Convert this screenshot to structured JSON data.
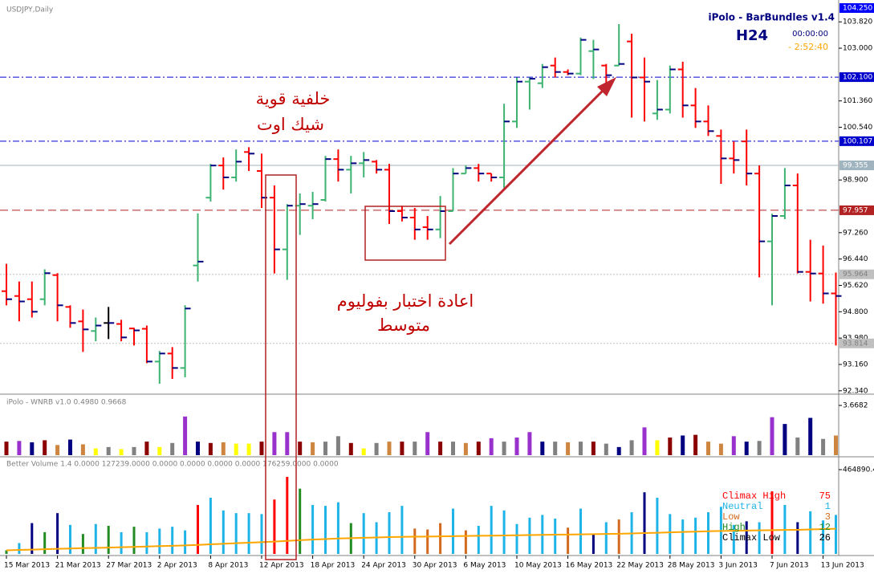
{
  "chart_data": [
    {
      "type": "ohlc",
      "title": "USDJPY,Daily",
      "info": {
        "indicator": "iPolo - BarBundles v1.4",
        "timeframe": "H24",
        "timer": "00:00:00",
        "countdown": "- 2:52:40"
      },
      "annotations": [
        "خلفية قوية",
        "شيك اوت",
        "اعادة اختبار بفوليوم",
        "متوسط"
      ],
      "categories": [
        "15 Mar 2013",
        null,
        null,
        null,
        "21 Mar 2013",
        null,
        null,
        null,
        "27 Mar 2013",
        null,
        null,
        null,
        "2 Apr 2013",
        null,
        null,
        null,
        "8 Apr 2013",
        null,
        null,
        null,
        "12 Apr 2013",
        null,
        null,
        null,
        "18 Apr 2013",
        null,
        null,
        null,
        "24 Apr 2013",
        null,
        null,
        null,
        "30 Apr 2013",
        null,
        null,
        null,
        "6 May 2013",
        null,
        null,
        null,
        "10 May 2013",
        null,
        null,
        null,
        "16 May 2013",
        null,
        null,
        null,
        "22 May 2013",
        null,
        null,
        null,
        "28 May 2013",
        null,
        null,
        null,
        "3 Jun 2013",
        null,
        null,
        null,
        "7 Jun 2013",
        null,
        null,
        null,
        "13 Jun 2013",
        null
      ],
      "open": [
        95.44,
        95.29,
        95.19,
        95.19,
        95.94,
        94.95,
        94.5,
        94.2,
        94.45,
        94.42,
        94.28,
        94.27,
        93.25,
        93.5,
        93.05,
        96.24,
        98.35,
        99.35,
        98.98,
        99.77,
        99.18,
        98.35,
        96.74,
        98.1,
        98.1,
        98.28,
        99.55,
        99.22,
        99.42,
        99.47,
        99.22,
        97.93,
        97.73,
        97.43,
        97.36,
        97.93,
        99.1,
        99.27,
        99.1,
        98.98,
        100.72,
        101.96,
        101.91,
        102.46,
        102.26,
        102.21,
        102.91,
        102.46,
        102.46,
        103.21,
        102.09,
        100.97,
        101.09,
        102.34,
        101.22,
        100.72,
        100.27,
        99.57,
        100.1,
        99.1,
        96.99,
        97.78,
        98.73,
        96.04,
        95.99,
        95.37
      ],
      "high": [
        96.29,
        95.74,
        95.74,
        96.12,
        96.0,
        95.0,
        94.87,
        94.62,
        94.95,
        94.55,
        94.3,
        94.37,
        93.58,
        93.7,
        95.0,
        97.86,
        99.4,
        99.6,
        99.85,
        99.92,
        99.72,
        98.73,
        98.15,
        98.48,
        98.53,
        99.65,
        99.85,
        99.65,
        99.77,
        99.52,
        99.4,
        98.1,
        98.03,
        97.78,
        98.4,
        99.27,
        99.35,
        99.4,
        99.1,
        101.27,
        102.09,
        102.09,
        102.51,
        102.71,
        102.34,
        103.33,
        103.26,
        102.51,
        103.75,
        103.45,
        102.71,
        102.01,
        102.46,
        102.58,
        101.76,
        101.22,
        100.47,
        100.1,
        100.47,
        99.35,
        97.85,
        99.27,
        99.1,
        97.04,
        96.86,
        96.02
      ],
      "low": [
        95.0,
        94.5,
        94.62,
        95.0,
        94.5,
        94.3,
        93.55,
        93.88,
        93.95,
        93.88,
        93.75,
        93.2,
        92.56,
        92.71,
        92.76,
        95.74,
        98.23,
        98.6,
        98.85,
        99.18,
        98.03,
        95.99,
        95.79,
        97.19,
        97.68,
        98.23,
        98.85,
        98.48,
        98.98,
        99.1,
        97.53,
        97.61,
        97.04,
        97.04,
        97.09,
        97.93,
        99.1,
        98.85,
        98.85,
        98.65,
        100.52,
        101.09,
        101.76,
        102.09,
        102.16,
        102.16,
        102.04,
        101.91,
        102.46,
        100.84,
        100.72,
        100.77,
        100.97,
        100.84,
        100.52,
        100.27,
        98.78,
        99.1,
        98.73,
        95.87,
        95.0,
        97.68,
        95.99,
        95.12,
        95.05,
        93.75
      ],
      "close": [
        95.19,
        95.12,
        94.8,
        96.0,
        95.0,
        94.45,
        94.25,
        94.37,
        94.45,
        94.0,
        94.22,
        93.25,
        93.5,
        93.05,
        94.9,
        96.36,
        99.35,
        98.98,
        99.47,
        99.72,
        98.35,
        96.74,
        98.1,
        98.15,
        98.15,
        99.55,
        99.22,
        99.42,
        99.52,
        99.22,
        97.93,
        97.73,
        97.36,
        97.36,
        97.93,
        99.1,
        99.27,
        99.1,
        98.98,
        100.72,
        101.96,
        102.05,
        102.41,
        102.26,
        102.21,
        103.26,
        102.96,
        102.16,
        102.51,
        102.09,
        101.96,
        101.09,
        102.34,
        101.22,
        100.72,
        100.42,
        99.57,
        99.52,
        99.1,
        96.99,
        97.78,
        98.73,
        96.04,
        95.99,
        95.37,
        95.29
      ],
      "up_color": "#3cb371",
      "down_color": "#ff0000",
      "doji_color": "#000000",
      "close_tick_color": "#000080",
      "ylim": [
        92.26,
        104.45
      ],
      "yticks": [
        {
          "value": 92.34,
          "label": "92.340"
        },
        {
          "value": 93.16,
          "label": "93.160"
        },
        {
          "value": 93.98,
          "label": "93.980"
        },
        {
          "value": 94.8,
          "label": "94.800"
        },
        {
          "value": 95.62,
          "label": "95.620"
        },
        {
          "value": 96.44,
          "label": "96.440"
        },
        {
          "value": 97.26,
          "label": "97.260"
        },
        {
          "value": 98.9,
          "label": "98.900"
        },
        {
          "value": 100.54,
          "label": "100.540"
        },
        {
          "value": 101.36,
          "label": "101.360"
        },
        {
          "value": 103.0,
          "label": "103.000"
        },
        {
          "value": 103.82,
          "label": "103.820"
        }
      ],
      "hlines": [
        {
          "value": 104.25,
          "label": "104.250",
          "color": "#0000ff",
          "text_color": "#ffffff",
          "style": "label"
        },
        {
          "value": 102.1,
          "label": "102.100",
          "color": "#0000cd",
          "text_color": "#ffffff",
          "style": "dashdot"
        },
        {
          "value": 100.107,
          "label": "100.107",
          "color": "#0000cd",
          "text_color": "#ffffff",
          "style": "dashdot"
        },
        {
          "value": 99.355,
          "label": "99.355",
          "color": "#9fb4bf",
          "text_color": "#ffffff",
          "style": "solid"
        },
        {
          "value": 97.957,
          "label": "97.957",
          "color": "#b22222",
          "text_color": "#ffffff",
          "style": "dashed"
        },
        {
          "value": 95.964,
          "label": "95.964",
          "color": "#c0c0c0",
          "text_color": "#808080",
          "style": "dotted"
        },
        {
          "value": 93.814,
          "label": "93.814",
          "color": "#c0c0c0",
          "text_color": "#808080",
          "style": "dotted"
        }
      ]
    },
    {
      "type": "bar",
      "title": "iPolo - WNRB v1.0 0.4980 0.9668",
      "values": [
        1.0,
        1.05,
        0.95,
        1.1,
        0.75,
        1.15,
        0.8,
        0.5,
        0.6,
        0.45,
        0.6,
        1.0,
        0.6,
        0.9,
        2.85,
        1.0,
        0.9,
        0.95,
        0.85,
        0.85,
        1.0,
        1.7,
        1.7,
        1.0,
        0.95,
        1.0,
        1.4,
        0.9,
        0.5,
        0.9,
        1.0,
        1.0,
        1.0,
        1.7,
        1.0,
        1.0,
        0.9,
        1.0,
        1.25,
        1.0,
        1.3,
        1.7,
        1.0,
        1.0,
        0.95,
        1.0,
        1.0,
        0.85,
        0.6,
        1.1,
        2.05,
        1.1,
        1.3,
        1.45,
        1.5,
        1.0,
        0.85,
        1.4,
        1.0,
        1.05,
        2.8,
        2.3,
        1.3,
        2.75,
        1.2,
        1.45
      ],
      "colors": [
        "#8b0000",
        "#9932cc",
        "#000080",
        "#8b0000",
        "#cd853f",
        "#000080",
        "#cd853f",
        "#ffff00",
        "#808080",
        "#ffff00",
        "#808080",
        "#8b0000",
        "#ffff00",
        "#808080",
        "#9932cc",
        "#000080",
        "#8b0000",
        "#cd853f",
        "#ffff00",
        "#ffff00",
        "#8b0000",
        "#9932cc",
        "#9932cc",
        "#8b0000",
        "#cd853f",
        "#808080",
        "#808080",
        "#8b0000",
        "#ffff00",
        "#808080",
        "#cd853f",
        "#8b0000",
        "#808080",
        "#9932cc",
        "#8b0000",
        "#808080",
        "#cd853f",
        "#8b0000",
        "#9932cc",
        "#808080",
        "#9932cc",
        "#9932cc",
        "#000080",
        "#808080",
        "#cd853f",
        "#808080",
        "#8b0000",
        "#808080",
        "#000080",
        "#808080",
        "#9932cc",
        "#ffff00",
        "#8b0000",
        "#000080",
        "#8b0000",
        "#cd853f",
        "#cd853f",
        "#9932cc",
        "#000080",
        "#808080",
        "#9932cc",
        "#000080",
        "#808080",
        "#000080",
        "#808080",
        "#cd853f"
      ],
      "ylim": [
        0,
        3.6682
      ],
      "yticks": [
        3.6682
      ]
    },
    {
      "type": "bar",
      "title": "Better Volume 1.4 0.0000 127239.0000 0.0000 0.0000 0.0000 0.0000 176259.0000 0.0000",
      "values": [
        20000,
        60000,
        170000,
        120000,
        225000,
        160000,
        110000,
        165000,
        155000,
        120000,
        150000,
        120000,
        140000,
        150000,
        130000,
        270000,
        310000,
        240000,
        225000,
        225000,
        220000,
        300000,
        425000,
        360000,
        270000,
        265000,
        285000,
        170000,
        225000,
        175000,
        230000,
        265000,
        140000,
        135000,
        170000,
        250000,
        130000,
        155000,
        265000,
        240000,
        165000,
        200000,
        215000,
        195000,
        145000,
        250000,
        110000,
        175000,
        190000,
        230000,
        340000,
        310000,
        220000,
        190000,
        200000,
        230000,
        260000,
        160000,
        180000,
        175000,
        345000,
        270000,
        175000,
        235000,
        185000,
        215000
      ],
      "colors": [
        "#228b22",
        "#1eb4e8",
        "#000080",
        "#228b22",
        "#000080",
        "#1eb4e8",
        "#228b22",
        "#1eb4e8",
        "#228b22",
        "#1eb4e8",
        "#228b22",
        "#1eb4e8",
        "#1eb4e8",
        "#1eb4e8",
        "#1eb4e8",
        "#ff0000",
        "#1eb4e8",
        "#1eb4e8",
        "#1eb4e8",
        "#1eb4e8",
        "#1eb4e8",
        "#ff0000",
        "#ff0000",
        "#228b22",
        "#1eb4e8",
        "#1eb4e8",
        "#1eb4e8",
        "#228b22",
        "#1eb4e8",
        "#1eb4e8",
        "#1eb4e8",
        "#1eb4e8",
        "#d2691e",
        "#d2691e",
        "#d2691e",
        "#1eb4e8",
        "#d2691e",
        "#1eb4e8",
        "#1eb4e8",
        "#1eb4e8",
        "#1eb4e8",
        "#1eb4e8",
        "#1eb4e8",
        "#1eb4e8",
        "#d2691e",
        "#1eb4e8",
        "#000080",
        "#1eb4e8",
        "#d2691e",
        "#1eb4e8",
        "#000080",
        "#1eb4e8",
        "#1eb4e8",
        "#1eb4e8",
        "#1eb4e8",
        "#1eb4e8",
        "#1eb4e8",
        "#1eb4e8",
        "#000080",
        "#1eb4e8",
        "#ff0000",
        "#1eb4e8",
        "#000080",
        "#1eb4e8",
        "#1eb4e8",
        "#1eb4e8"
      ],
      "average": {
        "color": "#ffa500",
        "values": [
          20000,
          22000,
          24000,
          26000,
          28000,
          30000,
          32000,
          33000,
          35000,
          37000,
          39000,
          41000,
          43000,
          45000,
          47000,
          50000,
          53000,
          56000,
          59000,
          62000,
          65000,
          68000,
          72000,
          76000,
          79000,
          82000,
          85000,
          87000,
          89000,
          91000,
          93000,
          94000,
          95000,
          96000,
          97000,
          98000,
          99000,
          100000,
          101000,
          102000,
          103000,
          104000,
          105000,
          106000,
          107000,
          108000,
          109000,
          110000,
          111000,
          113000,
          115000,
          117000,
          119000,
          121000,
          123000,
          125000,
          127000,
          128000,
          129000,
          130000,
          131000,
          132000,
          133000,
          135000,
          137000,
          139000
        ]
      },
      "legend": [
        {
          "name": "Climax High",
          "count": 75,
          "color": "#ff0000"
        },
        {
          "name": "Neutral",
          "count": 1,
          "color": "#1eb4e8"
        },
        {
          "name": "Low",
          "count": 3,
          "color": "#d2691e"
        },
        {
          "name": "High",
          "count": 12,
          "color": "#228b22"
        },
        {
          "name": "Climax Low",
          "count": 26,
          "color": "#000000"
        }
      ],
      "ylim": [
        0,
        464890.4
      ],
      "yticks": [
        464890.4
      ]
    }
  ]
}
